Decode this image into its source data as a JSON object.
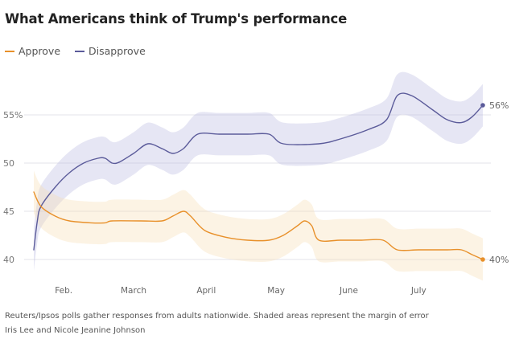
{
  "chart_data": {
    "type": "line",
    "title": "What Americans think of Trump's performance",
    "ylim": [
      38,
      59
    ],
    "y_ticks": [
      {
        "value": 55,
        "label": "55%"
      },
      {
        "value": 50,
        "label": "50"
      },
      {
        "value": 45,
        "label": "45"
      },
      {
        "value": 40,
        "label": "40"
      }
    ],
    "x_range": [
      0,
      6.3
    ],
    "x_ticks": [
      {
        "value": 0.42,
        "label": "Feb."
      },
      {
        "value": 1.4,
        "label": "March"
      },
      {
        "value": 2.42,
        "label": "April"
      },
      {
        "value": 3.4,
        "label": "May"
      },
      {
        "value": 4.42,
        "label": "June"
      },
      {
        "value": 5.4,
        "label": "July"
      }
    ],
    "series": [
      {
        "name": "Disapprove",
        "color": "#5b5b9a",
        "band_color": "#b8b8e0",
        "end_label": "56%",
        "margin": 2.2,
        "points": [
          [
            0,
            41
          ],
          [
            0.05,
            44
          ],
          [
            0.1,
            45.5
          ],
          [
            0.3,
            47.5
          ],
          [
            0.5,
            49
          ],
          [
            0.7,
            50
          ],
          [
            0.9,
            50.5
          ],
          [
            1.0,
            50.5
          ],
          [
            1.1,
            50
          ],
          [
            1.2,
            50.1
          ],
          [
            1.4,
            51
          ],
          [
            1.6,
            52
          ],
          [
            1.8,
            51.5
          ],
          [
            1.95,
            51
          ],
          [
            2.1,
            51.5
          ],
          [
            2.3,
            53
          ],
          [
            2.6,
            53
          ],
          [
            3.0,
            53
          ],
          [
            3.3,
            53
          ],
          [
            3.5,
            52
          ],
          [
            4.0,
            52
          ],
          [
            4.3,
            52.5
          ],
          [
            4.7,
            53.5
          ],
          [
            4.95,
            54.5
          ],
          [
            5.1,
            57
          ],
          [
            5.3,
            57
          ],
          [
            5.6,
            55.5
          ],
          [
            5.8,
            54.5
          ],
          [
            6.0,
            54.2
          ],
          [
            6.15,
            54.8
          ],
          [
            6.3,
            56
          ]
        ]
      },
      {
        "name": "Approve",
        "color": "#e8902a",
        "band_color": "#f7ddb2",
        "end_label": "40%",
        "margin": 2.2,
        "points": [
          [
            0,
            47
          ],
          [
            0.1,
            45.5
          ],
          [
            0.3,
            44.5
          ],
          [
            0.5,
            44
          ],
          [
            0.8,
            43.8
          ],
          [
            1.0,
            43.8
          ],
          [
            1.1,
            44
          ],
          [
            1.5,
            44
          ],
          [
            1.8,
            44
          ],
          [
            1.95,
            44.5
          ],
          [
            2.1,
            45
          ],
          [
            2.2,
            44.5
          ],
          [
            2.4,
            43
          ],
          [
            2.7,
            42.3
          ],
          [
            3.0,
            42
          ],
          [
            3.3,
            42
          ],
          [
            3.5,
            42.5
          ],
          [
            3.7,
            43.5
          ],
          [
            3.8,
            44
          ],
          [
            3.9,
            43.5
          ],
          [
            4.0,
            42
          ],
          [
            4.3,
            42
          ],
          [
            4.6,
            42
          ],
          [
            4.9,
            42
          ],
          [
            5.1,
            41
          ],
          [
            5.4,
            41
          ],
          [
            5.8,
            41
          ],
          [
            6.0,
            41
          ],
          [
            6.15,
            40.5
          ],
          [
            6.3,
            40
          ]
        ]
      }
    ]
  },
  "legend": {
    "approve": {
      "label": "Approve",
      "color": "#e8902a"
    },
    "disapprove": {
      "label": "Disapprove",
      "color": "#5b5b9a"
    }
  },
  "footer": {
    "note": "Reuters/Ipsos polls gather responses from adults nationwide. Shaded areas represent the margin of error",
    "credit": "Iris Lee and Nicole Jeanine Johnson"
  }
}
